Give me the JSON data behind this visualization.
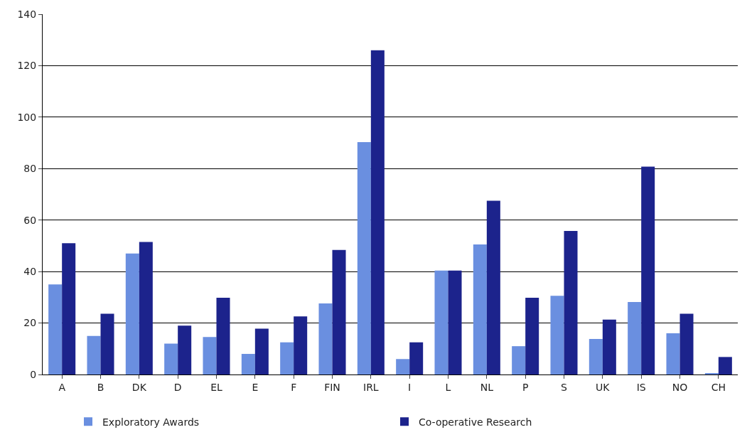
{
  "chart_data": {
    "type": "bar",
    "categories": [
      "A",
      "B",
      "DK",
      "D",
      "EL",
      "E",
      "F",
      "FIN",
      "IRL",
      "I",
      "L",
      "NL",
      "P",
      "S",
      "UK",
      "IS",
      "NO",
      "CH"
    ],
    "series": [
      {
        "name": "Exploratory Awards",
        "color": "#6a8fe0",
        "values": [
          35,
          15,
          47,
          12,
          14.6,
          8,
          12.5,
          27.6,
          90.3,
          6,
          40.4,
          50.5,
          11,
          30.6,
          13.8,
          28.2,
          16,
          0.5
        ]
      },
      {
        "name": "Co-operative Research",
        "color": "#1c238c",
        "values": [
          51,
          23.6,
          51.5,
          19,
          29.8,
          17.8,
          22.6,
          48.4,
          126,
          12.5,
          40.4,
          67.5,
          29.8,
          55.8,
          21.3,
          80.8,
          23.6,
          6.8
        ]
      }
    ],
    "ylim": [
      0,
      140
    ],
    "yticks": [
      0,
      20,
      40,
      60,
      80,
      100,
      120,
      140
    ],
    "grid": "y",
    "legend": "bottom"
  }
}
